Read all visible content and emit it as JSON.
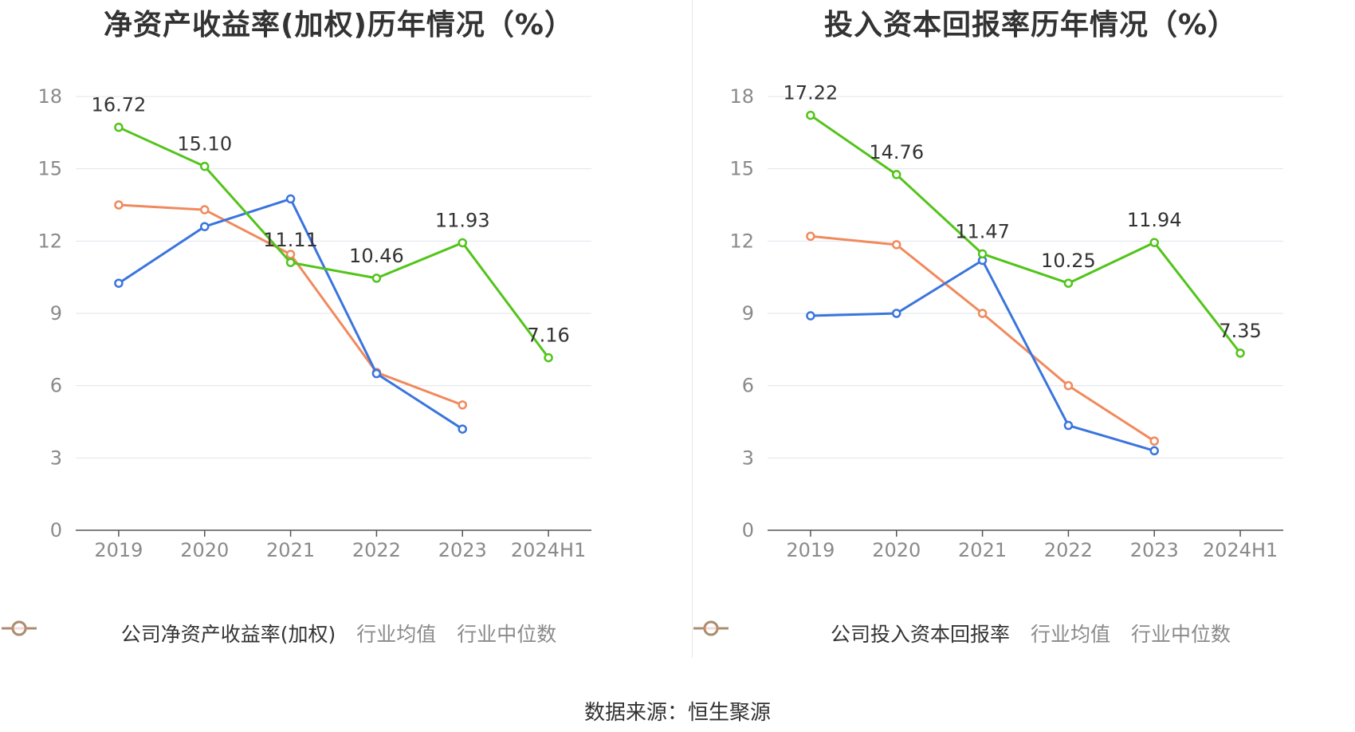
{
  "source_label": "数据来源：恒生聚源",
  "chart_data": [
    {
      "type": "line",
      "title": "净资产收益率(加权)历年情况（%）",
      "categories": [
        "2019",
        "2020",
        "2021",
        "2022",
        "2023",
        "2024H1"
      ],
      "ylim": [
        0,
        18
      ],
      "yticks": [
        0,
        3,
        6,
        9,
        12,
        15,
        18
      ],
      "grid": true,
      "legend_position": "bottom",
      "series": [
        {
          "name": "公司净资产收益率(加权)",
          "color": "#52c41a",
          "values": [
            16.72,
            15.1,
            11.11,
            10.46,
            11.93,
            7.16
          ],
          "labels": [
            "16.72",
            "15.10",
            "11.11",
            "10.46",
            "11.93",
            "7.16"
          ],
          "show_labels": true
        },
        {
          "name": "行业均值",
          "color": "#3a75dd",
          "values": [
            10.25,
            12.6,
            13.75,
            6.5,
            4.2,
            null
          ],
          "show_labels": false
        },
        {
          "name": "行业中位数",
          "color": "#f08a5d",
          "values": [
            13.5,
            13.3,
            11.45,
            6.55,
            5.2,
            null
          ],
          "show_labels": false
        }
      ]
    },
    {
      "type": "line",
      "title": "投入资本回报率历年情况（%）",
      "categories": [
        "2019",
        "2020",
        "2021",
        "2022",
        "2023",
        "2024H1"
      ],
      "ylim": [
        0,
        18
      ],
      "yticks": [
        0,
        3,
        6,
        9,
        12,
        15,
        18
      ],
      "grid": true,
      "legend_position": "bottom",
      "series": [
        {
          "name": "公司投入资本回报率",
          "color": "#52c41a",
          "values": [
            17.22,
            14.76,
            11.47,
            10.25,
            11.94,
            7.35
          ],
          "labels": [
            "17.22",
            "14.76",
            "11.47",
            "10.25",
            "11.94",
            "7.35"
          ],
          "show_labels": true
        },
        {
          "name": "行业均值",
          "color": "#3a75dd",
          "values": [
            8.9,
            9.0,
            11.2,
            4.35,
            3.3,
            null
          ],
          "show_labels": false
        },
        {
          "name": "行业中位数",
          "color": "#f08a5d",
          "values": [
            12.2,
            11.85,
            9.0,
            6.0,
            3.7,
            null
          ],
          "show_labels": false
        }
      ]
    }
  ]
}
